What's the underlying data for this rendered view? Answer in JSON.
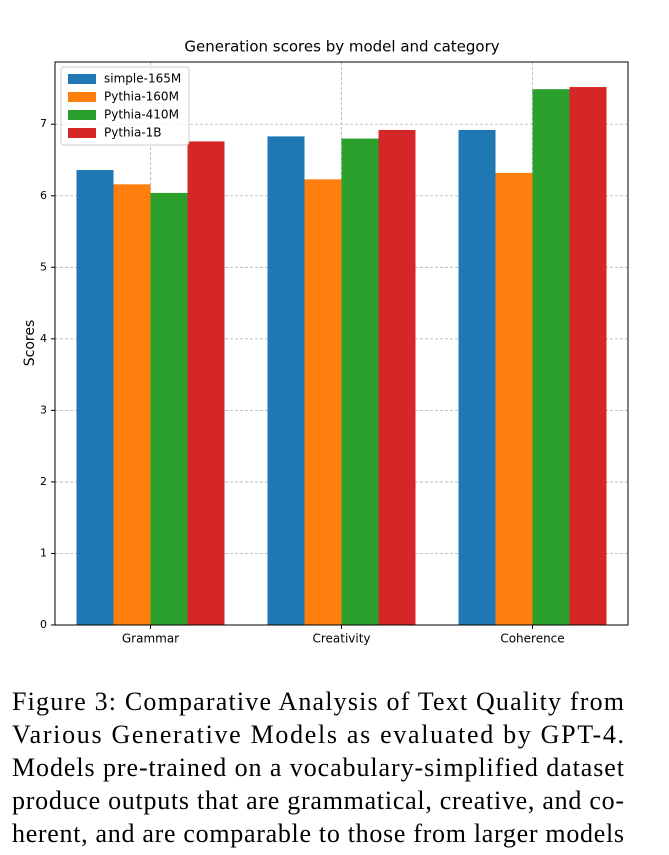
{
  "chart_data": {
    "type": "bar",
    "title": "Generation scores by model and category",
    "y_label": "Scores",
    "categories": [
      "Grammar",
      "Creativity",
      "Coherence"
    ],
    "series": [
      {
        "name": "simple-165M",
        "color": "#1f77b4",
        "values": [
          6.36,
          6.83,
          6.92
        ]
      },
      {
        "name": "Pythia-160M",
        "color": "#ff7f0e",
        "values": [
          6.16,
          6.23,
          6.32
        ]
      },
      {
        "name": "Pythia-410M",
        "color": "#2ca02c",
        "values": [
          6.04,
          6.8,
          7.49
        ]
      },
      {
        "name": "Pythia-1B",
        "color": "#d62728",
        "values": [
          6.76,
          6.92,
          7.52
        ]
      }
    ],
    "ylim": [
      0,
      7.87
    ],
    "yticks": [
      0,
      1,
      2,
      3,
      4,
      5,
      6,
      7
    ],
    "grid": true,
    "legend": "upper-left"
  },
  "caption": [
    "Figure 3: Comparative Analysis of Text Quality from",
    "Various Generative Models as evaluated by GPT-4.",
    "Models pre-trained on a vocabulary-simplified dataset",
    "produce outputs that are grammatical, creative, and co-",
    "herent, and are comparable to those from larger models"
  ]
}
